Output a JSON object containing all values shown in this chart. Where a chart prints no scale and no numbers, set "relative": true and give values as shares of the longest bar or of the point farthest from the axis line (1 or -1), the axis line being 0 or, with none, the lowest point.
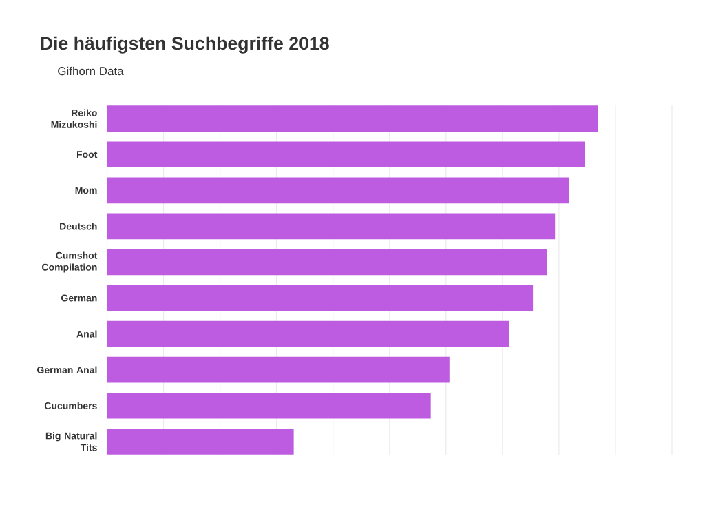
{
  "chart_data": {
    "type": "bar",
    "orientation": "horizontal",
    "relative": true,
    "title": "Die häufigsten Suchbegriffe 2018",
    "subtitle": "Gifhorn Data",
    "categories": [
      "Reiko Mizukoshi",
      "Foot",
      "Mom",
      "Deutsch",
      "Cumshot Compilation",
      "German",
      "Anal",
      "German Anal",
      "Cucumbers",
      "Big Natural Tits"
    ],
    "values": [
      1,
      0.972,
      0.941,
      0.912,
      0.896,
      0.867,
      0.819,
      0.697,
      0.659,
      0.38
    ],
    "color": "#bd5ce0",
    "grid": "x"
  }
}
